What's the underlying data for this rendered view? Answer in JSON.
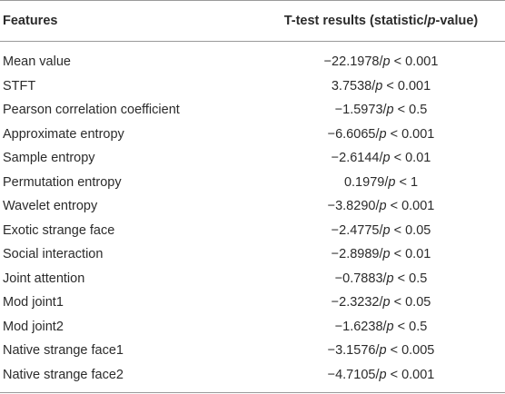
{
  "header": {
    "features_label": "Features",
    "results_label": "T-test results (statistic/p-value)"
  },
  "rows": [
    {
      "feature": "Mean value",
      "result": "−22.1978/p < 0.001"
    },
    {
      "feature": "STFT",
      "result": "3.7538/p < 0.001"
    },
    {
      "feature": "Pearson correlation coefficient",
      "result": "−1.5973/p < 0.5"
    },
    {
      "feature": "Approximate entropy",
      "result": "−6.6065/p < 0.001"
    },
    {
      "feature": "Sample entropy",
      "result": "−2.6144/p < 0.01"
    },
    {
      "feature": "Permutation entropy",
      "result": "0.1979/p < 1"
    },
    {
      "feature": "Wavelet entropy",
      "result": "−3.8290/p < 0.001"
    },
    {
      "feature": "Exotic strange face",
      "result": "−2.4775/p < 0.05"
    },
    {
      "feature": "Social interaction",
      "result": "−2.8989/p < 0.01"
    },
    {
      "feature": "Joint attention",
      "result": "−0.7883/p < 0.5"
    },
    {
      "feature": "Mod joint1",
      "result": "−2.3232/p < 0.05"
    },
    {
      "feature": "Mod joint2",
      "result": "−1.6238/p < 0.5"
    },
    {
      "feature": "Native strange face1",
      "result": "−3.1576/p < 0.005"
    },
    {
      "feature": "Native strange face2",
      "result": "−4.7105/p < 0.001"
    }
  ]
}
